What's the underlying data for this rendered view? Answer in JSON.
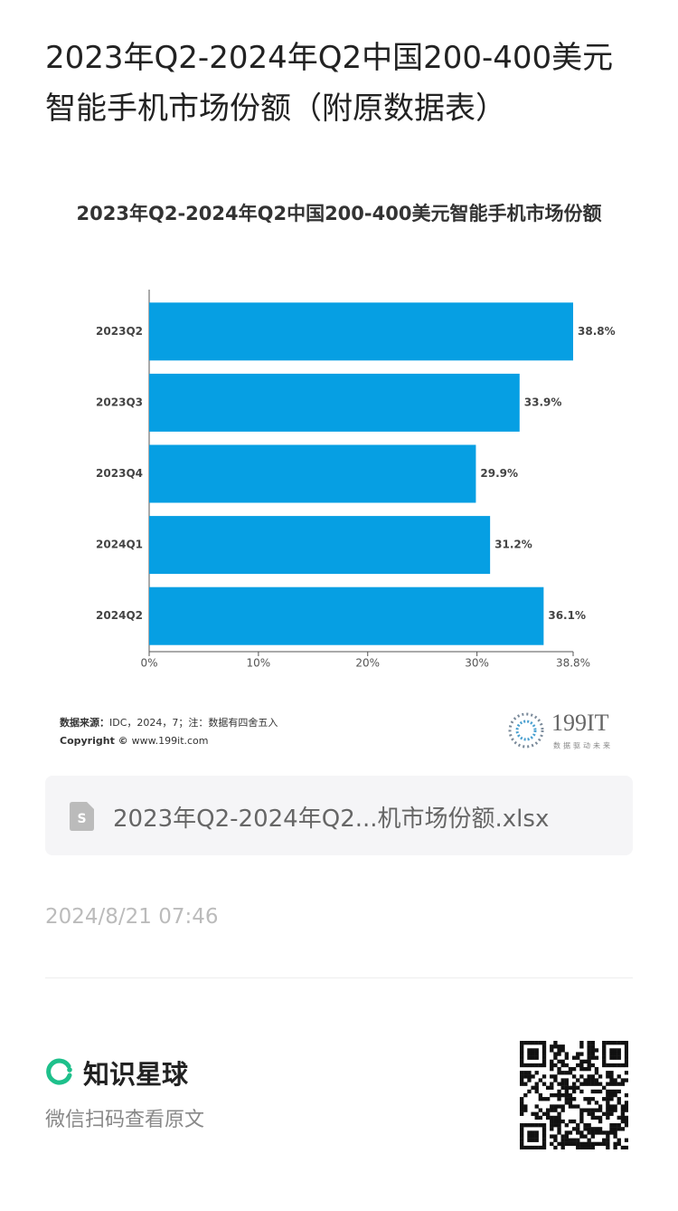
{
  "header": {
    "title": "2023年Q2-2024年Q2中国200-400美元智能手机市场份额（附原数据表）"
  },
  "chart_data": {
    "type": "bar",
    "orientation": "horizontal",
    "title": "2023年Q2-2024年Q2中国200-400美元智能手机市场份额",
    "categories": [
      "2023Q2",
      "2023Q3",
      "2023Q4",
      "2024Q1",
      "2024Q2"
    ],
    "values": [
      38.8,
      33.9,
      29.9,
      31.2,
      36.1
    ],
    "value_labels": [
      "38.8%",
      "33.9%",
      "29.9%",
      "31.2%",
      "36.1%"
    ],
    "color": "#069fe3",
    "xlim": [
      0,
      38.8
    ],
    "xticks": [
      {
        "value": 0,
        "label": "0%"
      },
      {
        "value": 10,
        "label": "10%"
      },
      {
        "value": 20,
        "label": "20%"
      },
      {
        "value": 30,
        "label": "30%"
      },
      {
        "value": 38.8,
        "label": "38.8%"
      }
    ]
  },
  "source": {
    "label": "数据来源：",
    "text": "IDC，2024，7；注：数据有四舍五入",
    "copyright_label": "Copyright ©",
    "copyright_text": "www.199it.com"
  },
  "logo": {
    "name": "199IT",
    "tagline": "数据驱动未来"
  },
  "attachment": {
    "filename": "2023年Q2-2024年Q2...机市场份额.xlsx"
  },
  "timestamp": "2024/8/21 07:46",
  "footer": {
    "brand": "知识星球",
    "hint": "微信扫码查看原文"
  }
}
